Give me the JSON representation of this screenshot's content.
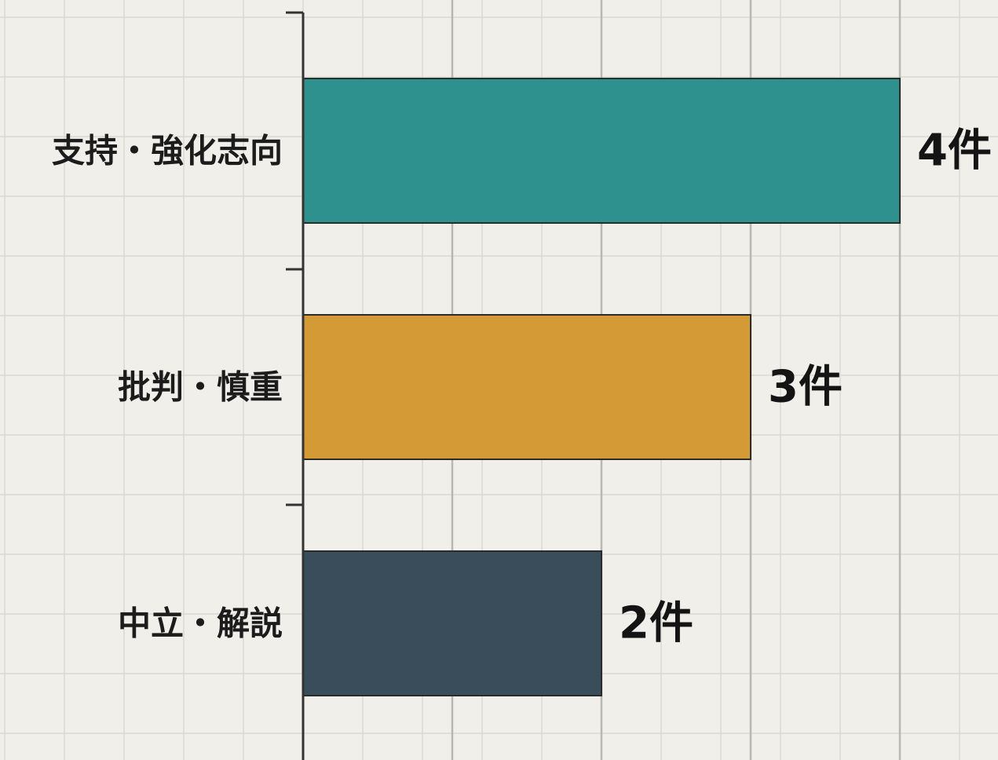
{
  "chart_data": {
    "type": "bar",
    "orientation": "horizontal",
    "title": "",
    "xlabel": "",
    "ylabel": "",
    "categories": [
      "支持・強化志向",
      "批判・慎重",
      "中立・解説"
    ],
    "values": [
      4,
      3,
      2
    ],
    "data_labels": [
      "4件",
      "3件",
      "2件"
    ],
    "colors": [
      "#2e918e",
      "#d49a36",
      "#3a4d5a"
    ],
    "xlim": [
      0,
      4
    ],
    "grid": true,
    "legend": "none"
  }
}
